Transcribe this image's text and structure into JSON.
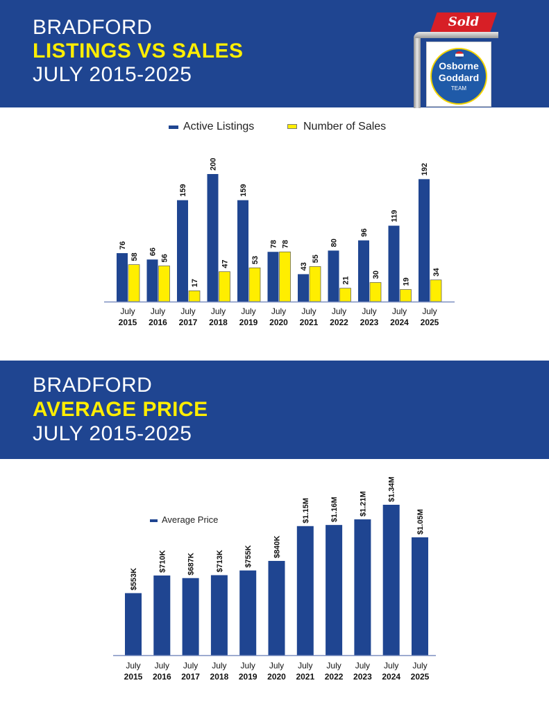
{
  "header1": {
    "line1": "BRADFORD",
    "line2": "LISTINGS VS SALES",
    "line3": "JULY 2015-2025"
  },
  "header2": {
    "line1": "BRADFORD",
    "line2": "AVERAGE PRICE",
    "line3": "JULY 2015-2025"
  },
  "logo": {
    "sign": "Sold",
    "name1": "Osborne",
    "name2": "Goddard",
    "name3": "TEAM"
  },
  "colors": {
    "banner": "#1f4591",
    "accent": "#ffee00",
    "bar_primary": "#1f4591",
    "bar_secondary": "#ffee00",
    "sold_red": "#d71f26"
  },
  "chart_data": [
    {
      "type": "bar",
      "categories": [
        "July 2015",
        "July 2016",
        "July 2017",
        "July 2018",
        "July 2019",
        "July 2020",
        "July 2021",
        "July 2022",
        "July 2023",
        "July 2024",
        "July 2025"
      ],
      "series": [
        {
          "name": "Active Listings",
          "values": [
            76,
            66,
            159,
            200,
            159,
            78,
            43,
            80,
            96,
            119,
            192
          ],
          "labels": [
            "76",
            "66",
            "159",
            "200",
            "159",
            "78",
            "43",
            "80",
            "96",
            "119",
            "192"
          ]
        },
        {
          "name": "Number of Sales",
          "values": [
            58,
            56,
            17,
            47,
            53,
            78,
            55,
            21,
            30,
            19,
            34
          ],
          "labels": [
            "58",
            "56",
            "17",
            "47",
            "53",
            "78",
            "55",
            "21",
            "30",
            "19",
            "34"
          ]
        }
      ],
      "ylim": [
        0,
        200
      ],
      "grid": false,
      "legend": "top"
    },
    {
      "type": "bar",
      "categories": [
        "July 2015",
        "July 2016",
        "July 2017",
        "July 2018",
        "July 2019",
        "July 2020",
        "July 2021",
        "July 2022",
        "July 2023",
        "July 2024",
        "July 2025"
      ],
      "series": [
        {
          "name": "Average Price",
          "values": [
            553000,
            710000,
            687000,
            713000,
            755000,
            840000,
            1150000,
            1160000,
            1210000,
            1340000,
            1050000
          ],
          "labels": [
            "$553K",
            "$710K",
            "$687K",
            "$713K",
            "$755K",
            "$840K",
            "$1.15M",
            "$1.16M",
            "$1.21M",
            "$1.34M",
            "$1.05M"
          ]
        }
      ],
      "ylim": [
        0,
        1340000
      ],
      "grid": false,
      "legend": "top-left"
    }
  ]
}
